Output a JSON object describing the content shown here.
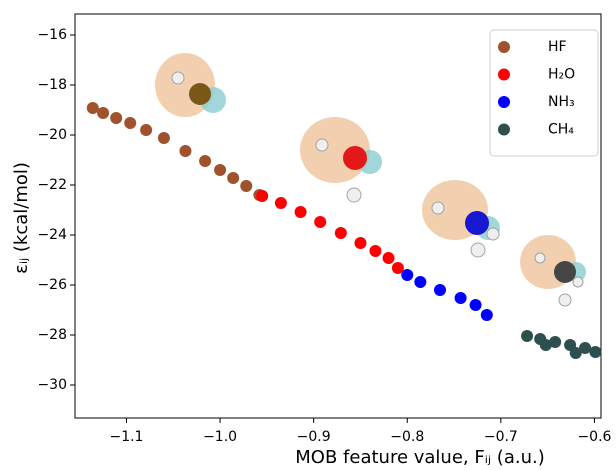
{
  "chart_data": {
    "type": "scatter",
    "xlabel": "MOB feature value, Fᵢⱼ (a.u.)",
    "ylabel": "εᵢⱼ (kcal/mol)",
    "xlim": [
      -1.155,
      -0.593
    ],
    "ylim": [
      -31.32,
      -15.16
    ],
    "xticks": [
      {
        "value": -1.1,
        "label": "−1.1"
      },
      {
        "value": -1.0,
        "label": "−1.0"
      },
      {
        "value": -0.9,
        "label": "−0.9"
      },
      {
        "value": -0.8,
        "label": "−0.8"
      },
      {
        "value": -0.7,
        "label": "−0.7"
      },
      {
        "value": -0.6,
        "label": "−0.6"
      }
    ],
    "yticks": [
      {
        "value": -16,
        "label": "−16"
      },
      {
        "value": -18,
        "label": "−18"
      },
      {
        "value": -20,
        "label": "−20"
      },
      {
        "value": -22,
        "label": "−22"
      },
      {
        "value": -24,
        "label": "−24"
      },
      {
        "value": -26,
        "label": "−26"
      },
      {
        "value": -28,
        "label": "−28"
      },
      {
        "value": -30,
        "label": "−30"
      }
    ],
    "grid": false,
    "legend": "upper right",
    "series": [
      {
        "name": "HF",
        "color": "#a0522d",
        "x": [
          -1.136,
          -1.125,
          -1.111,
          -1.096,
          -1.079,
          -1.06,
          -1.037,
          -1.016,
          -1.0,
          -0.986,
          -0.972,
          -0.958
        ],
        "values": [
          -18.92,
          -19.12,
          -19.32,
          -19.52,
          -19.8,
          -20.12,
          -20.64,
          -21.04,
          -21.4,
          -21.72,
          -22.04,
          -22.4
        ]
      },
      {
        "name": "H₂O",
        "color": "#ff0000",
        "x": [
          -0.955,
          -0.935,
          -0.914,
          -0.893,
          -0.871,
          -0.85,
          -0.834,
          -0.82,
          -0.81
        ],
        "values": [
          -22.44,
          -22.72,
          -23.08,
          -23.48,
          -23.92,
          -24.32,
          -24.64,
          -24.92,
          -25.32
        ]
      },
      {
        "name": "NH₃",
        "color": "#0000ff",
        "x": [
          -0.8,
          -0.786,
          -0.765,
          -0.743,
          -0.727,
          -0.715
        ],
        "values": [
          -25.6,
          -25.88,
          -26.2,
          -26.52,
          -26.8,
          -27.2
        ]
      },
      {
        "name": "CH₄",
        "color": "#2f4f4f",
        "x": [
          -0.672,
          -0.658,
          -0.642,
          -0.626,
          -0.61,
          -0.599,
          -0.652,
          -0.62
        ],
        "values": [
          -28.04,
          -28.16,
          -28.28,
          -28.4,
          -28.52,
          -28.68,
          -28.4,
          -28.72
        ]
      }
    ]
  }
}
